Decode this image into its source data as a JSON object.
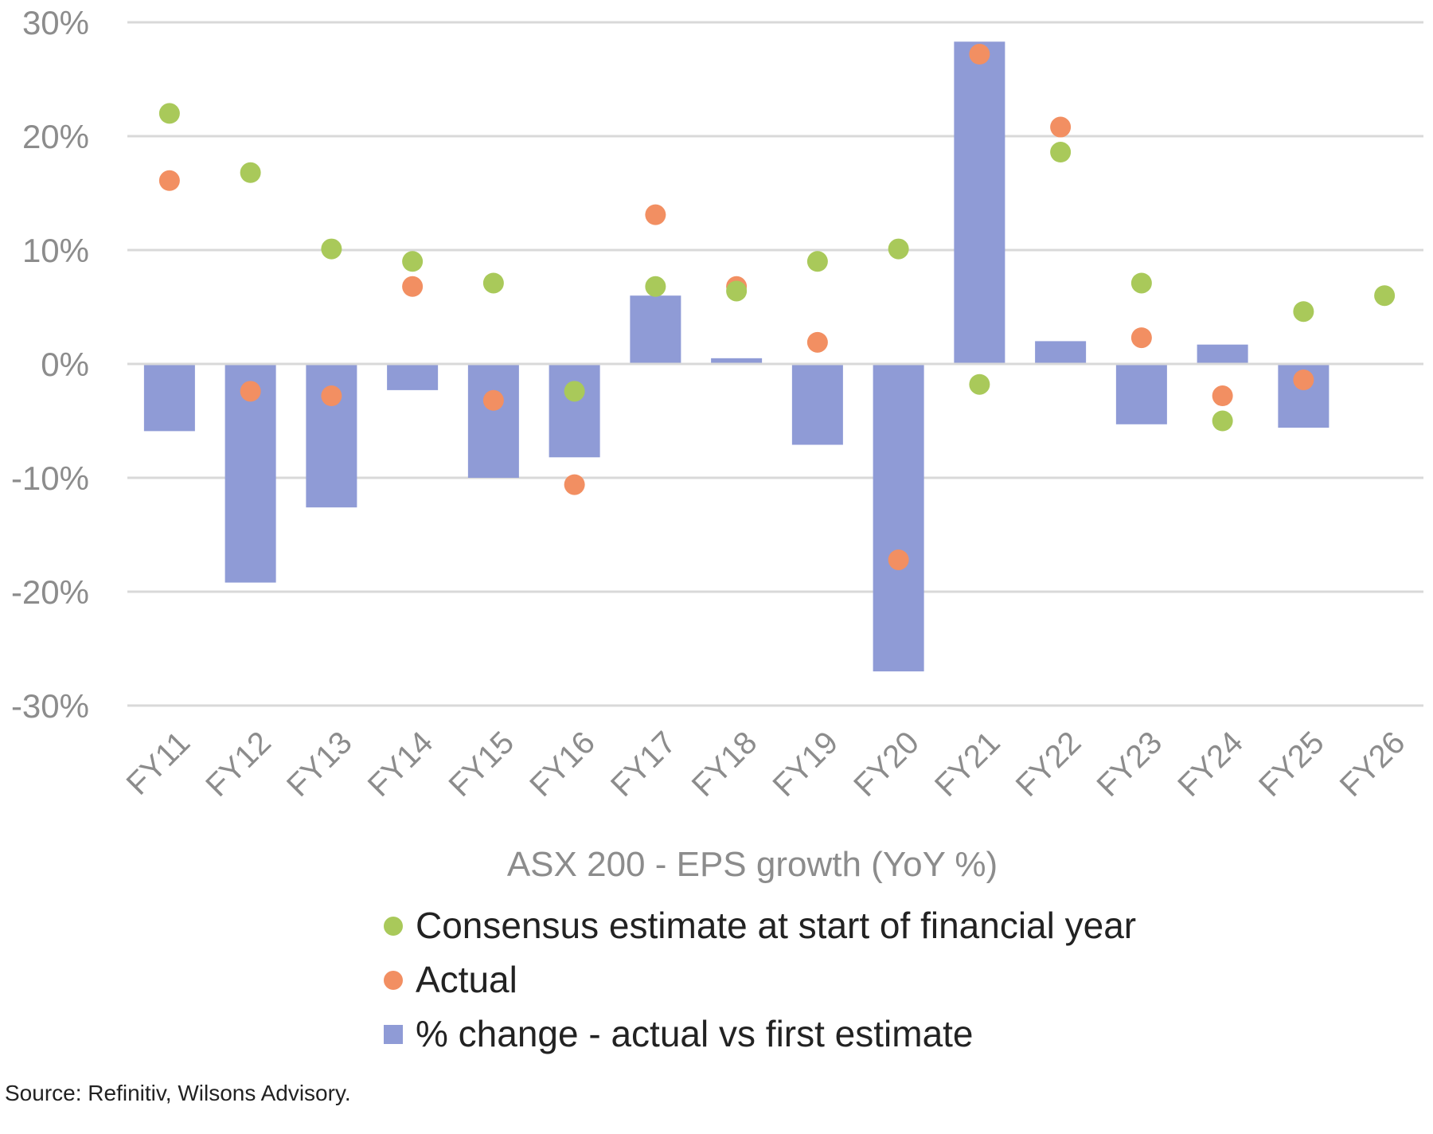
{
  "chart_data": {
    "type": "bar",
    "title": "",
    "xlabel": "ASX 200 - EPS growth (YoY %)",
    "ylabel": "",
    "categories": [
      "FY11",
      "FY12",
      "FY13",
      "FY14",
      "FY15",
      "FY16",
      "FY17",
      "FY18",
      "FY19",
      "FY20",
      "FY21",
      "FY22",
      "FY23",
      "FY24",
      "FY25",
      "FY26"
    ],
    "ylim": [
      -30,
      30
    ],
    "yticks": [
      "30%",
      "20%",
      "10%",
      "0%",
      "-10%",
      "-20%",
      "-30%"
    ],
    "grid": true,
    "legend_position": "bottom",
    "series": [
      {
        "name": "Consensus estimate at start of financial year",
        "type": "scatter",
        "color": "#a9c95a",
        "values": [
          22.0,
          16.8,
          10.1,
          9.0,
          7.1,
          -2.4,
          6.8,
          6.4,
          9.0,
          10.1,
          -1.8,
          18.6,
          7.1,
          -5.0,
          4.6,
          6.0
        ]
      },
      {
        "name": "Actual",
        "type": "scatter",
        "color": "#f28f62",
        "values": [
          16.1,
          -2.4,
          -2.8,
          6.8,
          -3.2,
          -10.6,
          13.1,
          6.8,
          1.9,
          -17.2,
          27.2,
          20.8,
          2.3,
          -2.8,
          -1.4,
          null
        ]
      },
      {
        "name": "% change - actual vs first estimate",
        "type": "bar",
        "color": "#8f9bd6",
        "values": [
          -5.9,
          -19.2,
          -12.6,
          -2.3,
          -10.0,
          -8.2,
          6.0,
          0.5,
          -7.1,
          -27.0,
          28.3,
          2.0,
          -5.3,
          1.7,
          -5.6,
          null
        ]
      }
    ]
  },
  "source": "Source: Refinitiv, Wilsons Advisory."
}
